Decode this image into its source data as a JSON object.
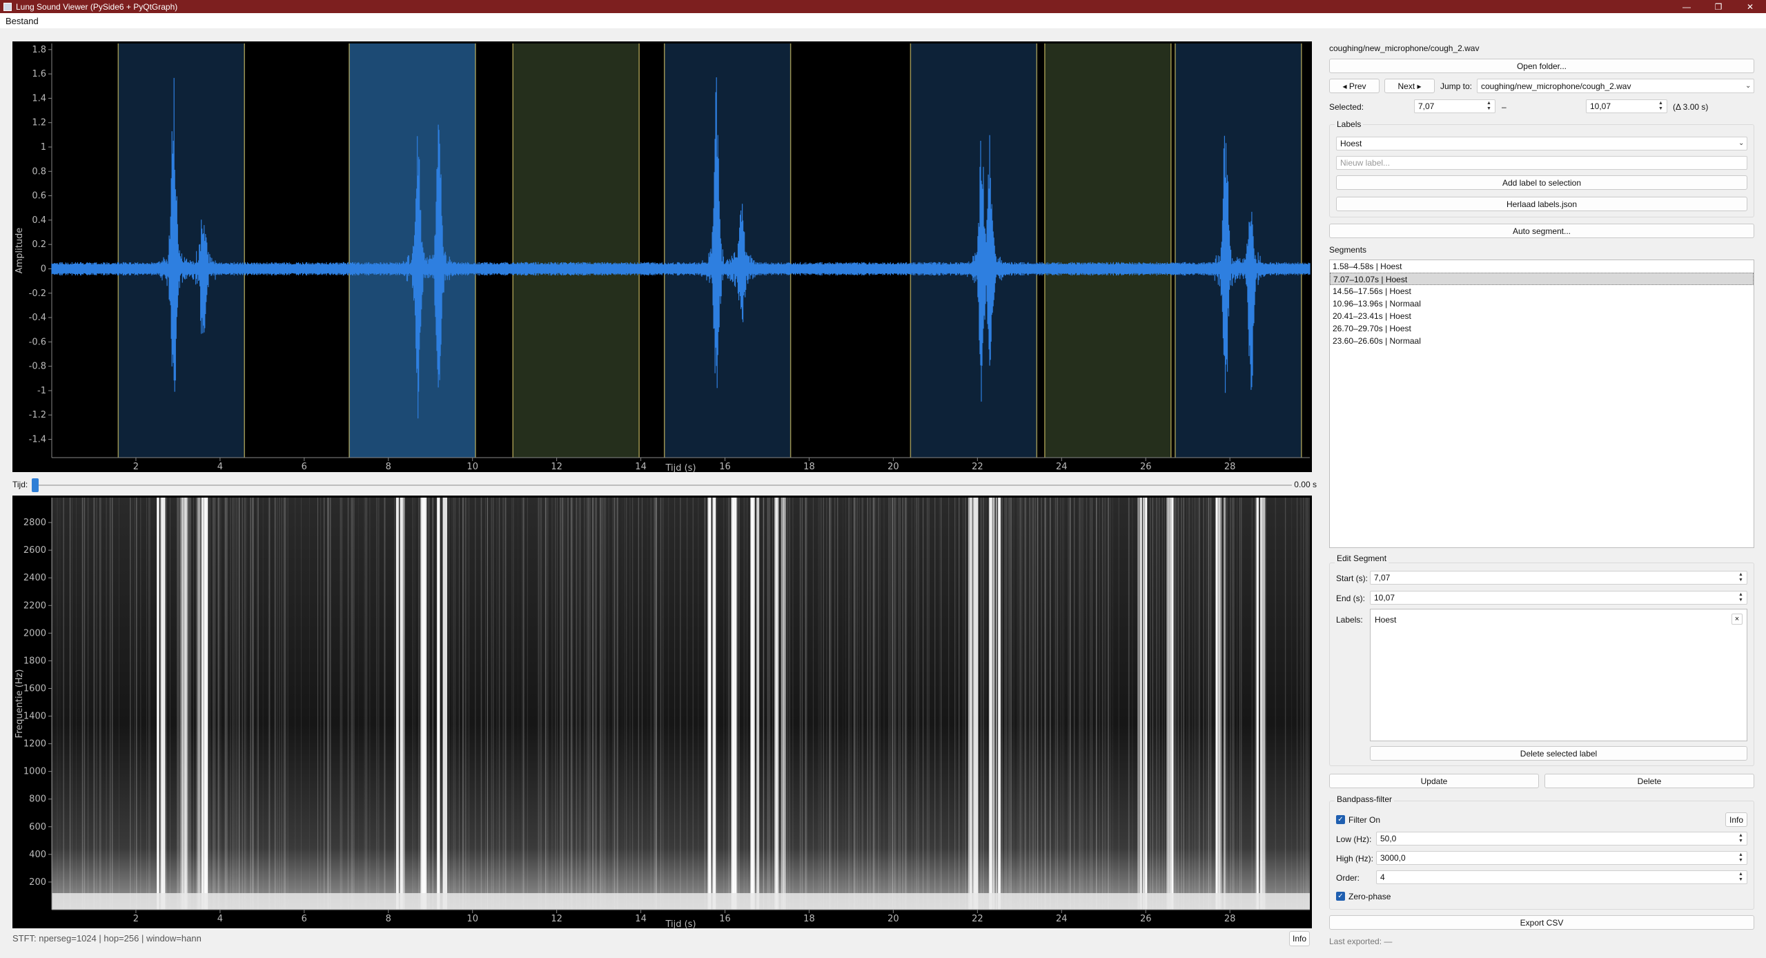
{
  "window": {
    "title": "Lung Sound Viewer (PySide6 + PyQtGraph)",
    "controls": {
      "minimize": "—",
      "maximize": "❐",
      "close": "✕"
    }
  },
  "menu": {
    "items": [
      "Bestand"
    ]
  },
  "waveform": {
    "ylabel": "Amplitude",
    "xlabel": "Tijd (s)",
    "yticks": [
      "1.8",
      "1.6",
      "1.4",
      "1.2",
      "1",
      "0.8",
      "0.6",
      "0.4",
      "0.2",
      "0",
      "-0.2",
      "-0.4",
      "-0.6",
      "-0.8",
      "-1",
      "-1.2",
      "-1.4"
    ],
    "xticks": [
      "2",
      "4",
      "6",
      "8",
      "10",
      "12",
      "14",
      "16",
      "18",
      "20",
      "22",
      "24",
      "26",
      "28"
    ],
    "colors": {
      "signal": "#2e7fe0",
      "region_hoest": "#0d2238",
      "region_selected": "#1c4a74",
      "region_normaal": "#252f1c",
      "region_edge": "#d9c96a"
    }
  },
  "spectrogram": {
    "ylabel": "Frequentie (Hz)",
    "xlabel": "Tijd (s)",
    "yticks": [
      "2800",
      "2600",
      "2400",
      "2200",
      "2000",
      "1800",
      "1600",
      "1400",
      "1200",
      "1000",
      "800",
      "600",
      "400",
      "200"
    ],
    "xticks": [
      "2",
      "4",
      "6",
      "8",
      "10",
      "12",
      "14",
      "16",
      "18",
      "20",
      "22",
      "24",
      "26",
      "28"
    ]
  },
  "chart_data": [
    {
      "type": "line",
      "xlabel": "Tijd (s)",
      "ylabel": "Amplitude",
      "xlim": [
        0,
        29.9
      ],
      "ylim": [
        -1.55,
        1.85
      ],
      "regions": [
        {
          "start": 1.58,
          "end": 4.58,
          "label": "Hoest"
        },
        {
          "start": 7.07,
          "end": 10.07,
          "label": "Hoest",
          "selected": true
        },
        {
          "start": 14.56,
          "end": 17.56,
          "label": "Hoest"
        },
        {
          "start": 10.96,
          "end": 13.96,
          "label": "Normaal"
        },
        {
          "start": 20.41,
          "end": 23.41,
          "label": "Hoest"
        },
        {
          "start": 26.7,
          "end": 29.7,
          "label": "Hoest"
        },
        {
          "start": 23.6,
          "end": 26.6,
          "label": "Normaal"
        }
      ],
      "bursts": [
        {
          "t": 2.9,
          "peak_pos": 1.57,
          "peak_neg": -1.25
        },
        {
          "t": 3.6,
          "peak_pos": 0.4,
          "peak_neg": -0.62
        },
        {
          "t": 8.7,
          "peak_pos": 1.1,
          "peak_neg": -1.1
        },
        {
          "t": 9.2,
          "peak_pos": 1.23,
          "peak_neg": -1.1
        },
        {
          "t": 15.8,
          "peak_pos": 1.55,
          "peak_neg": -1.1
        },
        {
          "t": 16.4,
          "peak_pos": 0.45,
          "peak_neg": -0.4
        },
        {
          "t": 22.1,
          "peak_pos": 1.0,
          "peak_neg": -0.95
        },
        {
          "t": 22.3,
          "peak_pos": 0.95,
          "peak_neg": -0.75
        },
        {
          "t": 27.9,
          "peak_pos": 1.3,
          "peak_neg": -1.1
        },
        {
          "t": 28.5,
          "peak_pos": 0.5,
          "peak_neg": -1.1
        }
      ]
    },
    {
      "type": "heatmap",
      "xlabel": "Tijd (s)",
      "ylabel": "Frequentie (Hz)",
      "xlim": [
        0,
        29.9
      ],
      "ylim": [
        0,
        2980
      ],
      "bright_columns_s": [
        2.6,
        3.2,
        3.6,
        8.3,
        8.8,
        9.3,
        15.7,
        16.2,
        16.7,
        17.3,
        21.9,
        22.4,
        25.9,
        26.6,
        27.8,
        28.7
      ]
    }
  ],
  "slider": {
    "label": "Tijd:",
    "value_text": "0.00 s",
    "position": 0.0
  },
  "status": {
    "stft_text": "STFT: nperseg=1024 | hop=256 | window=hann",
    "info_button": "Info"
  },
  "panel": {
    "file_path": "coughing/new_microphone/cough_2.wav",
    "open_folder": "Open folder...",
    "prev": "◂ Prev",
    "next": "Next ▸",
    "jump_label": "Jump to:",
    "jump_value": "coughing/new_microphone/cough_2.wav",
    "selected_label": "Selected:",
    "sel_start": "7,07",
    "dash": "–",
    "sel_end": "10,07",
    "delta": "(Δ 3.00 s)",
    "labels_group": "Labels",
    "label_combo": "Hoest",
    "new_label_placeholder": "Nieuw label...",
    "add_label": "Add label to selection",
    "reload_labels": "Herlaad labels.json",
    "auto_segment": "Auto segment...",
    "segments_title": "Segments",
    "segments": [
      "1.58–4.58s | Hoest",
      "7.07–10.07s | Hoest",
      "14.56–17.56s | Hoest",
      "10.96–13.96s | Normaal",
      "20.41–23.41s | Hoest",
      "26.70–29.70s | Hoest",
      "23.60–26.60s | Normaal"
    ],
    "selected_segment_index": 1,
    "edit_group": "Edit Segment",
    "start_label": "Start (s):",
    "start_value": "7,07",
    "end_label": "End (s):",
    "end_value": "10,07",
    "labels_label": "Labels:",
    "label_item": "Hoest",
    "remove_icon": "×",
    "delete_selected_label": "Delete selected label",
    "update": "Update",
    "delete": "Delete",
    "bandpass_group": "Bandpass-filter",
    "filter_on": "Filter On",
    "info": "Info",
    "low_label": "Low (Hz):",
    "low_value": "50,0",
    "high_label": "High (Hz):",
    "high_value": "3000,0",
    "order_label": "Order:",
    "order_value": "4",
    "zero_phase": "Zero-phase",
    "export_csv": "Export CSV",
    "last_exported": "Last exported: —"
  }
}
